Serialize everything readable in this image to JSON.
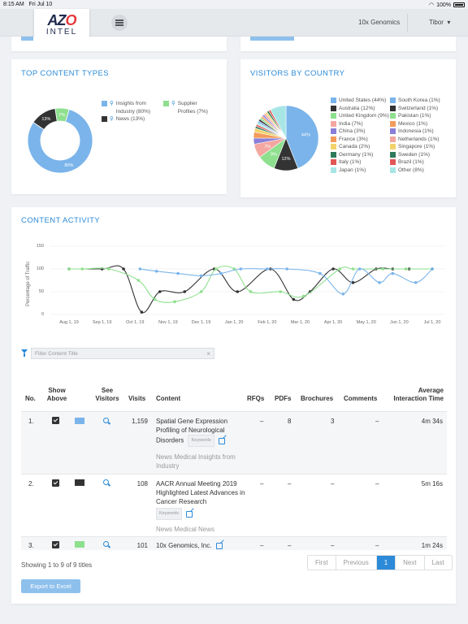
{
  "status_bar": {
    "time": "8:15 AM",
    "date": "Fri Jul 10",
    "battery": "100%"
  },
  "navbar": {
    "logo_main_a": "AZ",
    "logo_main_o": "O",
    "logo_sub": "INTEL",
    "company": "10x Genomics",
    "user": "Tibor",
    "menu_icon": "hamburger-icon",
    "caret": "▾"
  },
  "top_content_types": {
    "title": "TOP CONTENT TYPES",
    "slices": [
      {
        "label": "Insights from Industry (80%)",
        "short": "80%",
        "value": 80,
        "color": "#7ab4ea"
      },
      {
        "label": "News (13%)",
        "short": "13%",
        "value": 13,
        "color": "#333333"
      },
      {
        "label": "Supplier Profiles (7%)",
        "short": "7%",
        "value": 7,
        "color": "#8ee08e"
      }
    ],
    "legend_icon": "search-icon"
  },
  "visitors_by_country": {
    "title": "VISITORS BY COUNTRY",
    "countries": [
      {
        "label": "United States (44%)",
        "value": 44,
        "color": "#7ab4ea"
      },
      {
        "label": "Australia (12%)",
        "value": 12,
        "color": "#333333"
      },
      {
        "label": "United Kingdom (9%)",
        "value": 9,
        "color": "#8ee08e"
      },
      {
        "label": "India (7%)",
        "value": 7,
        "color": "#f4a6a0"
      },
      {
        "label": "China (3%)",
        "value": 3,
        "color": "#8a7fd8"
      },
      {
        "label": "France (3%)",
        "value": 3,
        "color": "#f39b5b"
      },
      {
        "label": "Canada (2%)",
        "value": 2,
        "color": "#f2d36b"
      },
      {
        "label": "Germany (1%)",
        "value": 1,
        "color": "#2e7a5a"
      },
      {
        "label": "Italy (1%)",
        "value": 1,
        "color": "#e25555"
      },
      {
        "label": "Japan (1%)",
        "value": 1,
        "color": "#a8e6e6"
      },
      {
        "label": "South Korea (1%)",
        "value": 1,
        "color": "#7ab4ea"
      },
      {
        "label": "Switzerland (1%)",
        "value": 1,
        "color": "#333333"
      },
      {
        "label": "Pakistan (1%)",
        "value": 1,
        "color": "#8ee08e"
      },
      {
        "label": "Mexico (1%)",
        "value": 1,
        "color": "#f39b5b"
      },
      {
        "label": "Indonesia (1%)",
        "value": 1,
        "color": "#8a7fd8"
      },
      {
        "label": "Netherlands (1%)",
        "value": 1,
        "color": "#f4a6a0"
      },
      {
        "label": "Singapore (1%)",
        "value": 1,
        "color": "#f2d36b"
      },
      {
        "label": "Sweden (1%)",
        "value": 1,
        "color": "#2e7a5a"
      },
      {
        "label": "Brazil (1%)",
        "value": 1,
        "color": "#e25555"
      },
      {
        "label": "Other (8%)",
        "value": 8,
        "color": "#a8e6e6"
      }
    ],
    "slice_labels": [
      "44%",
      "12%",
      "9%",
      "7%"
    ]
  },
  "content_activity": {
    "title": "CONTENT ACTIVITY",
    "filter_placeholder": "Filter Content Title",
    "clear": "×",
    "filter_icon": "filter-icon"
  },
  "chart_data": {
    "type": "line",
    "ylabel": "Percentage of Traffic",
    "ylim": [
      0,
      150
    ],
    "yticks": [
      "150",
      "100",
      "50",
      "0"
    ],
    "x": [
      "Aug 1, 19",
      "Sep 1, 19",
      "Oct 1, 19",
      "Nov 1, 19",
      "Dec 1, 19",
      "Jan 1, 20",
      "Feb 1, 20",
      "Mar 1, 20",
      "Apr 1, 20",
      "May 1, 20",
      "Jun 1, 20",
      "Jul 1, 20"
    ],
    "series": [
      {
        "color": "#333333",
        "points": [
          [
            0,
            100
          ],
          [
            1,
            100
          ],
          [
            1.65,
            100
          ],
          [
            2.2,
            5
          ],
          [
            2.75,
            50
          ],
          [
            3.5,
            50
          ],
          [
            4.4,
            100
          ],
          [
            5.1,
            50
          ],
          [
            6.1,
            100
          ],
          [
            6.8,
            33
          ],
          [
            7.3,
            50
          ],
          [
            8,
            100
          ],
          [
            8.6,
            70
          ],
          [
            9.3,
            100
          ],
          [
            9.8,
            100
          ],
          [
            10.3,
            100
          ],
          [
            11,
            100
          ]
        ]
      },
      {
        "color": "#8ee08e",
        "points": [
          [
            0,
            100
          ],
          [
            0.4,
            100
          ],
          [
            1.2,
            100
          ],
          [
            2.1,
            75
          ],
          [
            2.6,
            33
          ],
          [
            3.2,
            28
          ],
          [
            4,
            50
          ],
          [
            4.45,
            100
          ],
          [
            5,
            100
          ],
          [
            5.5,
            50
          ],
          [
            6.4,
            50
          ],
          [
            7.1,
            40
          ],
          [
            8.2,
            100
          ],
          [
            8.6,
            100
          ],
          [
            9.5,
            100
          ],
          [
            10.2,
            100
          ],
          [
            11,
            100
          ]
        ]
      },
      {
        "color": "#7ab4ea",
        "points": [
          [
            2.15,
            100
          ],
          [
            2.65,
            95
          ],
          [
            3.3,
            90
          ],
          [
            4,
            85
          ],
          [
            4.6,
            90
          ],
          [
            5.2,
            100
          ],
          [
            6,
            100
          ],
          [
            6.6,
            100
          ],
          [
            7.6,
            90
          ],
          [
            8.3,
            45
          ],
          [
            8.8,
            100
          ],
          [
            9.4,
            70
          ],
          [
            9.8,
            90
          ],
          [
            10.5,
            70
          ],
          [
            11,
            100
          ]
        ]
      }
    ]
  },
  "table": {
    "headers": {
      "no": "No.",
      "show_above": "Show Above",
      "see_visitors": "See Visitors",
      "visits": "Visits",
      "content": "Content",
      "rfqs": "RFQs",
      "pdfs": "PDFs",
      "brochures": "Brochures",
      "comments": "Comments",
      "avg_time": "Average Interaction Time"
    },
    "rows": [
      {
        "no": "1.",
        "color": "#7ab4ea",
        "visits": "1,159",
        "content": "Spatial Gene Expression Profiling of Neurological Disorders",
        "badge": "Keywords",
        "source": "News Medical Insights from Industry",
        "rfqs": "–",
        "pdfs": "8",
        "brochures": "3",
        "comments": "–",
        "avg_time": "4m 34s"
      },
      {
        "no": "2.",
        "color": "#333333",
        "visits": "108",
        "content": "AACR Annual Meeting 2019 Highlighted Latest Advances in Cancer Research",
        "badge": "Keywords",
        "source": "News Medical News",
        "rfqs": "–",
        "pdfs": "–",
        "brochures": "–",
        "comments": "–",
        "avg_time": "5m 16s"
      },
      {
        "no": "3.",
        "color": "#8ee08e",
        "visits": "101",
        "content": "10x Genomics, Inc.",
        "badge": "",
        "source": "",
        "rfqs": "–",
        "pdfs": "–",
        "brochures": "–",
        "comments": "–",
        "avg_time": "1m 24s"
      }
    ],
    "showing": "Showing 1 to 9 of 9 titles",
    "pager": [
      "First",
      "Previous",
      "1",
      "Next",
      "Last"
    ],
    "active_page": "1",
    "export": "Export to Excel"
  }
}
